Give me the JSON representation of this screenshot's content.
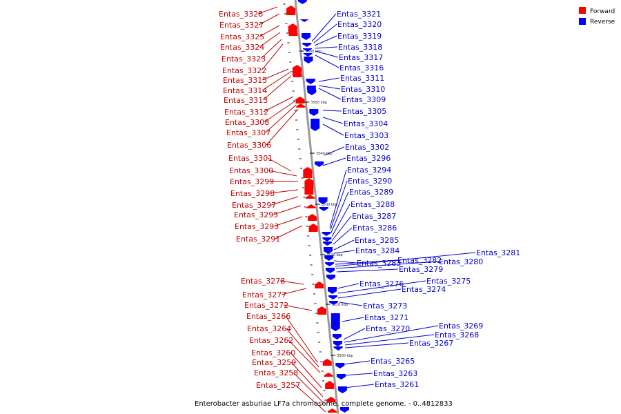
{
  "caption": "Enterobacter asburiae LF7a chromosome, complete genome. - 0..4812833",
  "legend": [
    {
      "label": "Forward",
      "color": "#ff0000"
    },
    {
      "label": "Reverse",
      "color": "#0000ff"
    }
  ],
  "colors": {
    "forward_label": "#c00000",
    "reverse_label": "#0000cc",
    "forward_gene": "#ff0000",
    "reverse_gene": "#0000ff",
    "backbone": "#9a9a9a"
  },
  "ticks": [
    "3560 kbp",
    "3550 kbp",
    "3540 kbp",
    "3530 kbp",
    "3520 kbp",
    "3510 kbp",
    "3500 kbp"
  ],
  "forward_genes": [
    "Entas_3328",
    "Entas_3327",
    "Entas_3325",
    "Entas_3324",
    "Entas_3323",
    "Entas_3322",
    "Entas_3315",
    "Entas_3314",
    "Entas_3313",
    "Entas_3312",
    "Entas_3308",
    "Entas_3307",
    "Entas_3306",
    "Entas_3301",
    "Entas_3300",
    "Entas_3299",
    "Entas_3298",
    "Entas_3297",
    "Entas_3295",
    "Entas_3293",
    "Entas_3291",
    "Entas_3278",
    "Entas_3277",
    "Entas_3272",
    "Entas_3266",
    "Entas_3264",
    "Entas_3262",
    "Entas_3260",
    "Entas_3259",
    "Entas_3258",
    "Entas_3257"
  ],
  "reverse_genes": [
    "Entas_3321",
    "Entas_3320",
    "Entas_3319",
    "Entas_3318",
    "Entas_3317",
    "Entas_3316",
    "Entas_3311",
    "Entas_3310",
    "Entas_3309",
    "Entas_3305",
    "Entas_3304",
    "Entas_3303",
    "Entas_3302",
    "Entas_3296",
    "Entas_3294",
    "Entas_3290",
    "Entas_3289",
    "Entas_3288",
    "Entas_3287",
    "Entas_3286",
    "Entas_3285",
    "Entas_3284",
    "Entas_3283",
    "Entas_3282",
    "Entas_3281",
    "Entas_3280",
    "Entas_3279",
    "Entas_3276",
    "Entas_3275",
    "Entas_3274",
    "Entas_3273",
    "Entas_3271",
    "Entas_3270",
    "Entas_3269",
    "Entas_3268",
    "Entas_3267",
    "Entas_3265",
    "Entas_3263",
    "Entas_3261"
  ]
}
